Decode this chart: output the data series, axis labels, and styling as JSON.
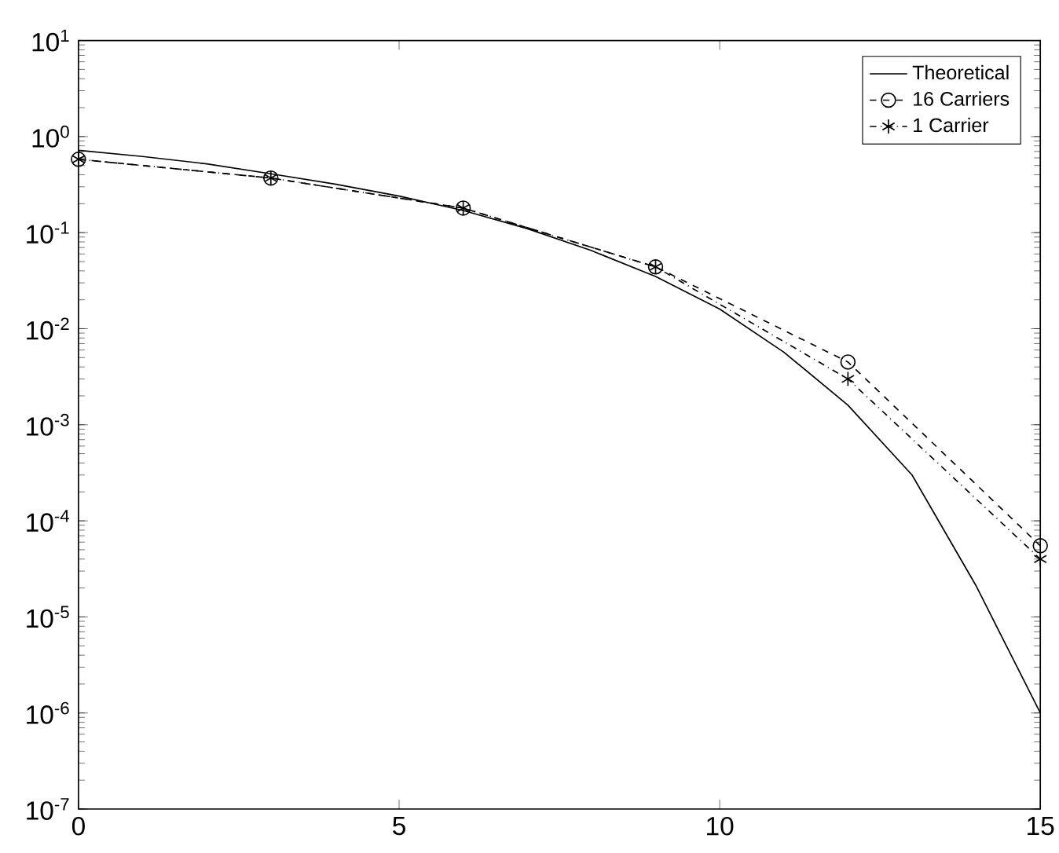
{
  "chart_data": {
    "type": "line",
    "log": "y",
    "xlim": [
      0,
      15
    ],
    "ylim": [
      1e-07,
      10
    ],
    "xticks": [
      0,
      5,
      10,
      15
    ],
    "yticks": [
      {
        "value": 1e-07,
        "label": "10$^{-7}$"
      },
      {
        "value": 1e-06,
        "label": "10$^{-6}$"
      },
      {
        "value": 1e-05,
        "label": "10$^{-5}$"
      },
      {
        "value": 0.0001,
        "label": "10$^{-4}$"
      },
      {
        "value": 0.001,
        "label": "10$^{-3}$"
      },
      {
        "value": 0.01,
        "label": "10$^{-2}$"
      },
      {
        "value": 0.1,
        "label": "10$^{-1}$"
      },
      {
        "value": 1,
        "label": "10$^{0}$"
      },
      {
        "value": 10,
        "label": "10$^{1}$"
      }
    ],
    "grid": false,
    "legend": "top right",
    "series": [
      {
        "name": "Theoretical",
        "color": "#000000",
        "line_style": "solid",
        "marker": "none",
        "x": [
          0,
          1,
          2,
          3,
          4,
          5,
          6,
          7,
          8,
          9,
          10,
          11,
          12,
          13,
          14,
          15
        ],
        "values": [
          0.72,
          0.62,
          0.52,
          0.41,
          0.32,
          0.24,
          0.17,
          0.11,
          0.065,
          0.035,
          0.016,
          0.0057,
          0.0016,
          0.0003,
          2.1e-05,
          1e-06
        ]
      },
      {
        "name": "16 Carriers",
        "color": "#000000",
        "line_style": "dashed",
        "marker": "circle",
        "x": [
          0,
          3,
          6,
          9,
          12,
          15
        ],
        "values": [
          0.58,
          0.37,
          0.18,
          0.044,
          0.0045,
          5.5e-05
        ]
      },
      {
        "name": "1 Carrier",
        "color": "#000000",
        "line_style": "dashdotted",
        "marker": "cross",
        "x": [
          0,
          3,
          6,
          9,
          12,
          15
        ],
        "values": [
          0.58,
          0.37,
          0.18,
          0.044,
          0.003,
          4e-05
        ]
      }
    ]
  }
}
